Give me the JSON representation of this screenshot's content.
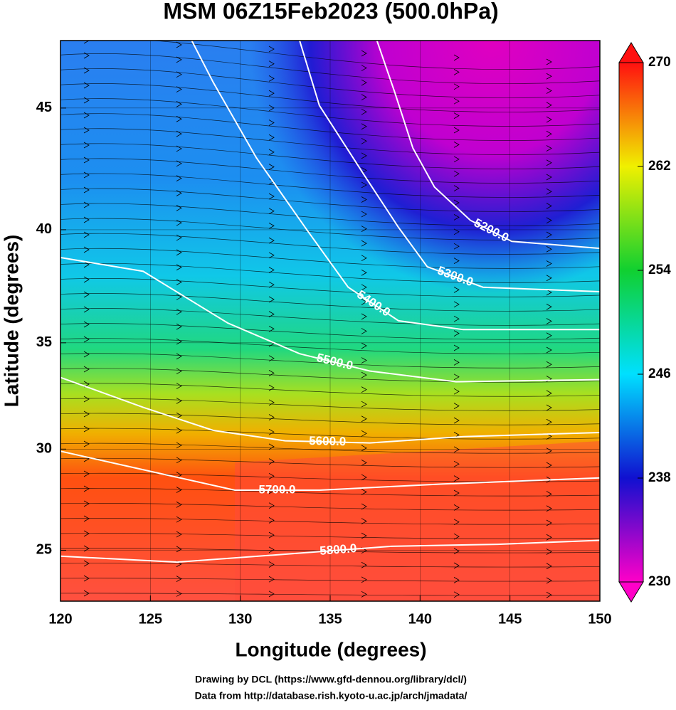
{
  "chart_data": {
    "type": "contour",
    "title": "MSM 06Z15Feb2023 (500.0hPa)",
    "x_label": "Longitude (degrees)",
    "y_label": "Latitude  (degrees)",
    "projection": "mercator",
    "xlim": [
      120,
      150
    ],
    "ylim": [
      22.4,
      47.6
    ],
    "xticks": [
      120,
      125,
      130,
      135,
      140,
      145,
      150
    ],
    "yticks": [
      25,
      30,
      35,
      40,
      45
    ],
    "grid": true,
    "contour_color": "#ffffff",
    "colorbar": {
      "lim": [
        230,
        270
      ],
      "ticks": [
        230,
        238,
        246,
        254,
        262,
        270
      ],
      "colors": [
        "#ff00c8",
        "#1010d0",
        "#00e0ff",
        "#10d030",
        "#f0f000",
        "#ff1010"
      ]
    },
    "contours": [
      {
        "value": 5200,
        "label": "5200.0",
        "lon": [
          137.6,
          138.6,
          139.6,
          140.8,
          142.8,
          145.1,
          150
        ],
        "lat": [
          47.6,
          45.6,
          43.4,
          41.8,
          40.4,
          39.5,
          39.2
        ]
      },
      {
        "value": 5300,
        "label": "5300.0",
        "lon": [
          133.3,
          134.4,
          136.8,
          138.8,
          140.4,
          143.5,
          150
        ],
        "lat": [
          47.6,
          45.1,
          42.4,
          40.1,
          38.4,
          37.5,
          37.3
        ]
      },
      {
        "value": 5400,
        "label": "5400.0",
        "lon": [
          127.3,
          128.5,
          130.9,
          133.7,
          136.0,
          138.8,
          142.4,
          150
        ],
        "lat": [
          47.6,
          46.0,
          43.0,
          40.0,
          37.5,
          36.0,
          35.6,
          35.6
        ]
      },
      {
        "value": 5500,
        "label": "5500.0",
        "lon": [
          120,
          124.6,
          129.3,
          133.3,
          137.2,
          142.0,
          150
        ],
        "lat": [
          38.8,
          38.2,
          35.9,
          34.5,
          33.7,
          33.2,
          33.3
        ]
      },
      {
        "value": 5600,
        "label": "5600.0",
        "lon": [
          120,
          124.6,
          128.5,
          132.5,
          137.2,
          142.4,
          150
        ],
        "lat": [
          33.4,
          32.0,
          30.9,
          30.4,
          30.3,
          30.6,
          30.8
        ]
      },
      {
        "value": 5700,
        "label": "5700.0",
        "lon": [
          120,
          124.6,
          129.7,
          134.4,
          141.2,
          150
        ],
        "lat": [
          29.9,
          29.0,
          28.0,
          28.0,
          28.3,
          28.6
        ]
      },
      {
        "value": 5800,
        "label": "5800.0",
        "lon": [
          120,
          126.5,
          132.5,
          138.4,
          144.3,
          150
        ],
        "lat": [
          24.7,
          24.4,
          24.8,
          25.2,
          25.3,
          25.5
        ]
      }
    ],
    "credits": [
      "Drawing by DCL (https://www.gfd-dennou.org/library/dcl/)",
      "Data from http://database.rish.kyoto-u.ac.jp/arch/jmadata/"
    ]
  }
}
